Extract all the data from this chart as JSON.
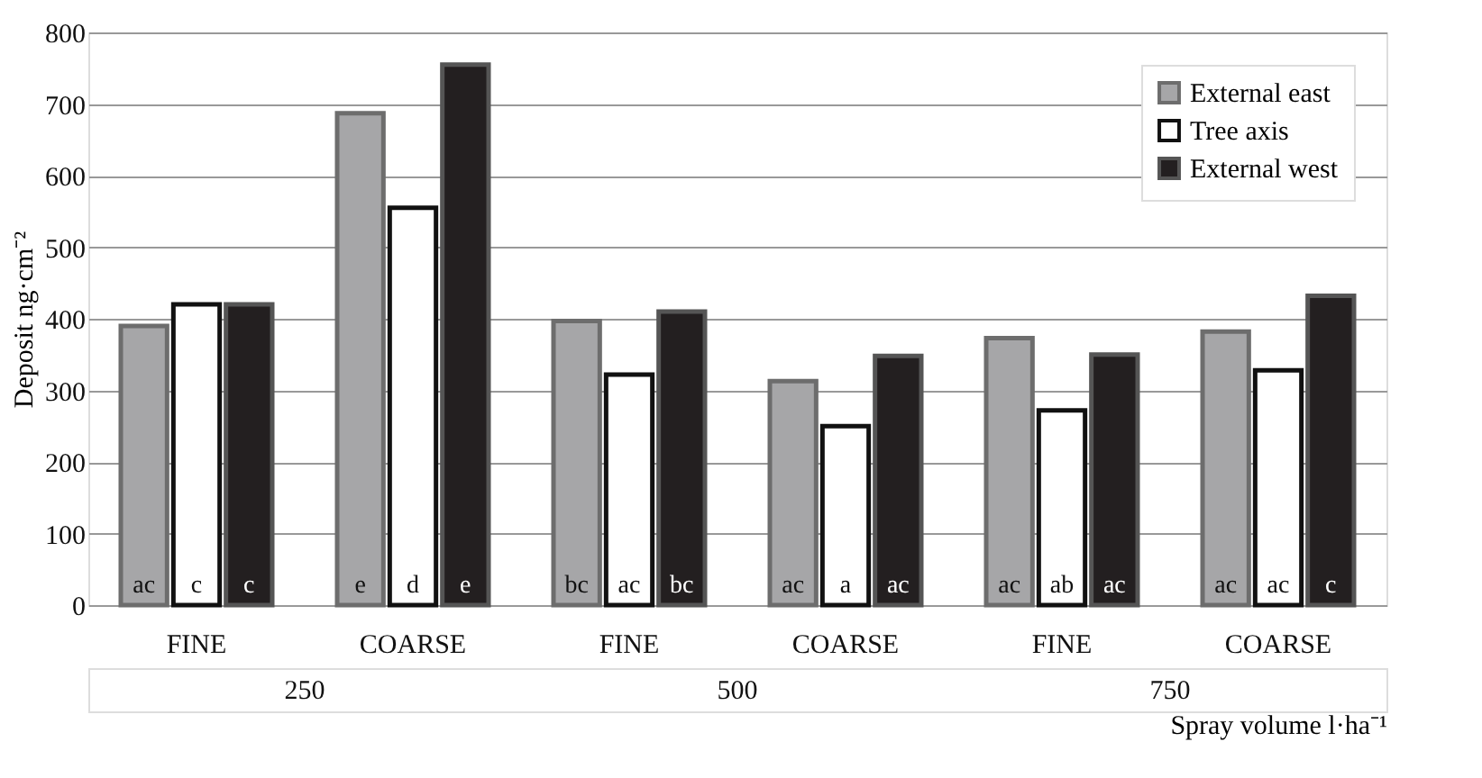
{
  "chart_data": {
    "type": "bar",
    "ylabel": "Deposit ng·cm⁻²",
    "xlabel": "Spray volume l·ha⁻¹",
    "categories": [
      "FINE",
      "COARSE",
      "FINE",
      "COARSE",
      "FINE",
      "COARSE"
    ],
    "annotations": [
      "250",
      "500",
      "750"
    ],
    "series": [
      {
        "name": "External east",
        "color": "#a6a6a8",
        "values": [
          390,
          687,
          397,
          313,
          373,
          382
        ],
        "value_labels": [
          "ac",
          "e",
          "bc",
          "ac",
          "ac",
          "ac"
        ]
      },
      {
        "name": "Tree axis",
        "color": "#ffffff",
        "values": [
          420,
          555,
          322,
          250,
          272,
          328
        ],
        "value_labels": [
          "c",
          "d",
          "ac",
          "a",
          "ab",
          "ac"
        ]
      },
      {
        "name": "External west",
        "color": "#231f20",
        "values": [
          420,
          755,
          410,
          348,
          350,
          432
        ],
        "value_labels": [
          "c",
          "e",
          "bc",
          "ac",
          "ac",
          "c"
        ]
      }
    ],
    "ylim": [
      0,
      800
    ],
    "yticks": [
      0,
      100,
      200,
      300,
      400,
      500,
      600,
      700,
      800
    ],
    "grid": "y",
    "legend": "top right"
  }
}
